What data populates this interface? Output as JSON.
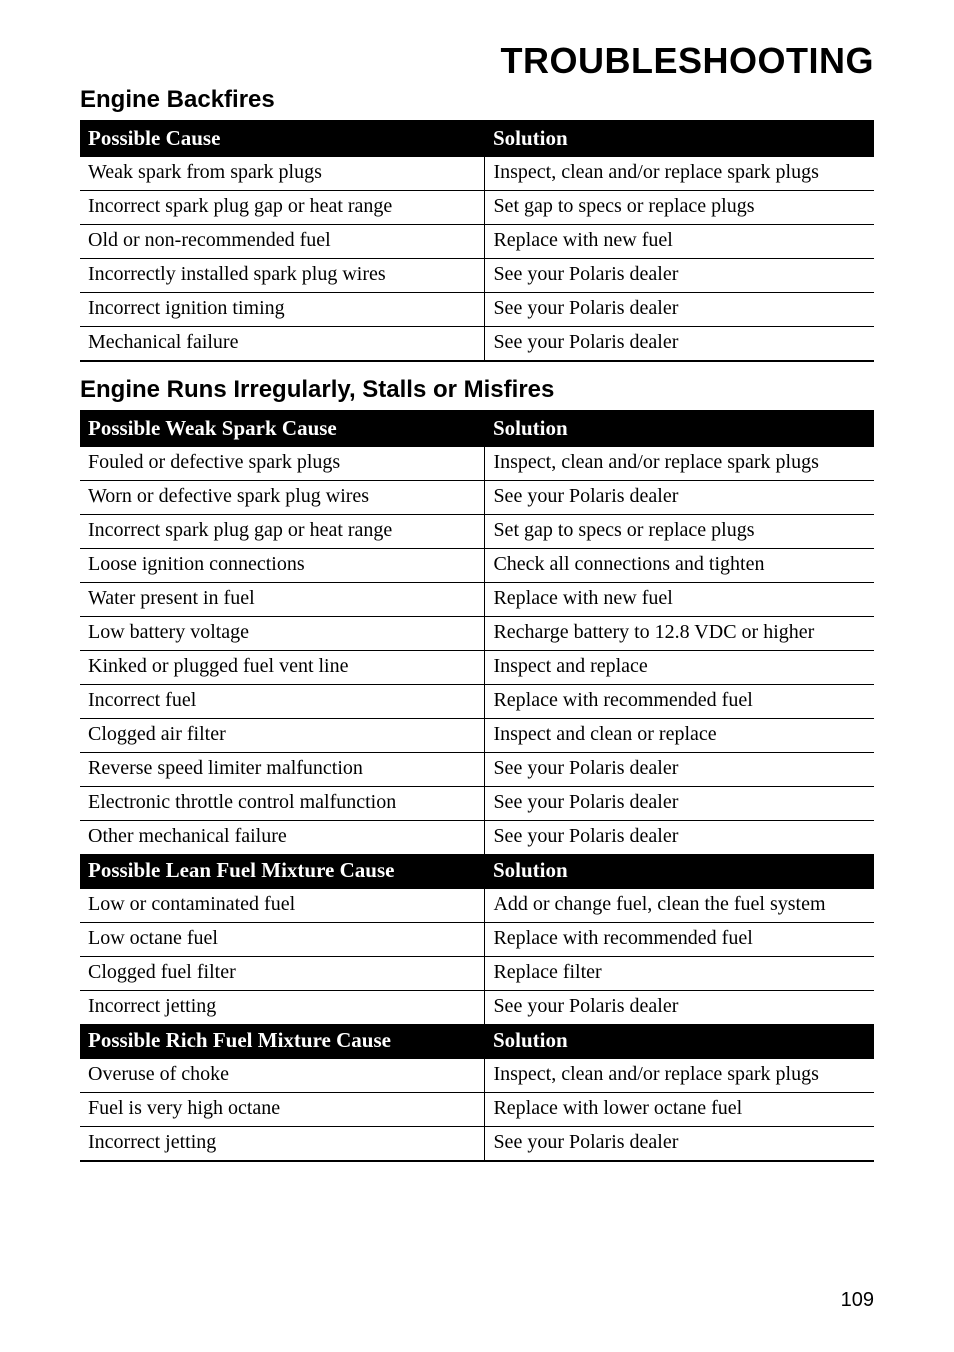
{
  "page_title": "TROUBLESHOOTING",
  "page_number": "109",
  "sections": [
    {
      "title": "Engine Backfires",
      "groups": [
        {
          "cause_header": "Possible Cause",
          "solution_header": "Solution",
          "rows": [
            {
              "cause": "Weak spark from spark plugs",
              "solution": "Inspect, clean and/or replace spark plugs"
            },
            {
              "cause": "Incorrect spark plug gap or heat range",
              "solution": "Set gap to specs or replace plugs"
            },
            {
              "cause": "Old or non-recommended fuel",
              "solution": "Replace with new fuel"
            },
            {
              "cause": "Incorrectly installed spark plug wires",
              "solution": "See your Polaris dealer"
            },
            {
              "cause": "Incorrect ignition timing",
              "solution": "See your Polaris dealer"
            },
            {
              "cause": "Mechanical failure",
              "solution": "See your Polaris dealer"
            }
          ]
        }
      ]
    },
    {
      "title": "Engine Runs Irregularly, Stalls or Misfires",
      "groups": [
        {
          "cause_header": "Possible Weak Spark Cause",
          "solution_header": "Solution",
          "rows": [
            {
              "cause": "Fouled or defective spark plugs",
              "solution": "Inspect, clean and/or replace spark plugs"
            },
            {
              "cause": "Worn or defective spark plug wires",
              "solution": "See your Polaris dealer"
            },
            {
              "cause": "Incorrect spark plug gap or heat range",
              "solution": "Set gap to specs or replace plugs"
            },
            {
              "cause": "Loose ignition connections",
              "solution": "Check all connections and tighten"
            },
            {
              "cause": "Water present in fuel",
              "solution": "Replace with new fuel"
            },
            {
              "cause": "Low battery voltage",
              "solution": "Recharge battery to 12.8 VDC or higher"
            },
            {
              "cause": "Kinked or plugged fuel vent line",
              "solution": "Inspect and replace"
            },
            {
              "cause": "Incorrect fuel",
              "solution": "Replace with recommended fuel"
            },
            {
              "cause": "Clogged air filter",
              "solution": "Inspect and clean or replace"
            },
            {
              "cause": "Reverse speed limiter malfunction",
              "solution": "See your Polaris dealer"
            },
            {
              "cause": "Electronic throttle control malfunction",
              "solution": "See your Polaris dealer"
            },
            {
              "cause": "Other mechanical failure",
              "solution": "See your Polaris dealer"
            }
          ]
        },
        {
          "cause_header": "Possible Lean Fuel Mixture Cause",
          "solution_header": "Solution",
          "rows": [
            {
              "cause": "Low or contaminated fuel",
              "solution": "Add or change fuel, clean the fuel system"
            },
            {
              "cause": "Low octane fuel",
              "solution": "Replace with recommended fuel"
            },
            {
              "cause": "Clogged fuel filter",
              "solution": "Replace filter"
            },
            {
              "cause": "Incorrect jetting",
              "solution": "See your Polaris dealer"
            }
          ]
        },
        {
          "cause_header": "Possible Rich Fuel Mixture Cause",
          "solution_header": "Solution",
          "rows": [
            {
              "cause": "Overuse of choke",
              "solution": "Inspect, clean and/or replace spark plugs"
            },
            {
              "cause": "Fuel is very high octane",
              "solution": "Replace with lower octane fuel"
            },
            {
              "cause": "Incorrect jetting",
              "solution": "See your Polaris dealer"
            }
          ]
        }
      ]
    }
  ]
}
